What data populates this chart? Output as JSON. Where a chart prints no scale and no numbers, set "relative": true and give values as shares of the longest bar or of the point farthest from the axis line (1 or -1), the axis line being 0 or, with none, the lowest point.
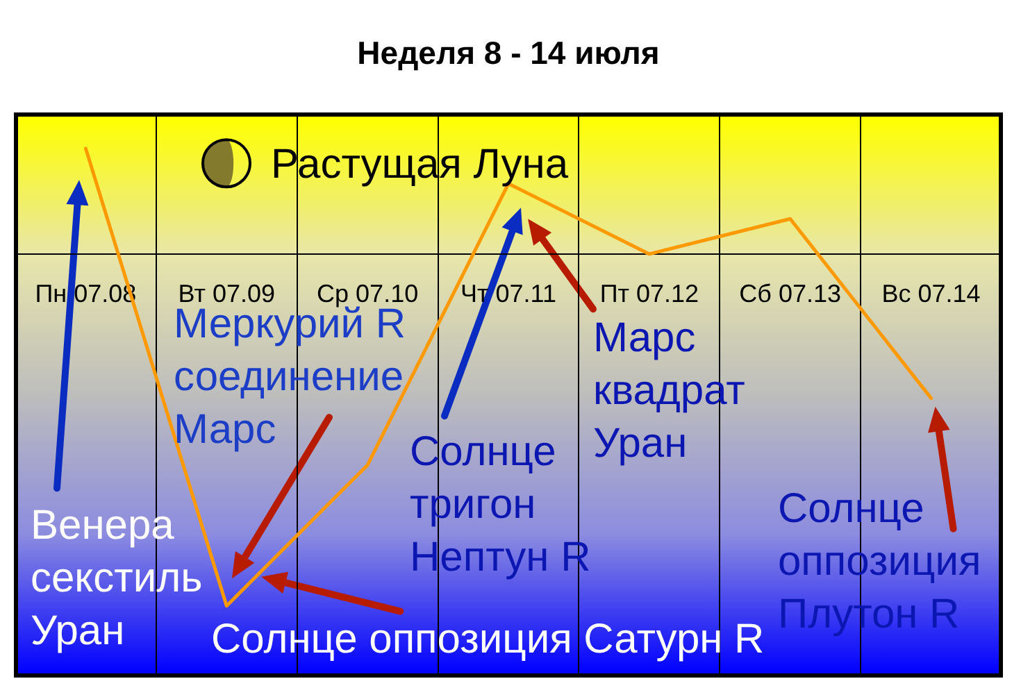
{
  "chart_data": {
    "type": "line",
    "title": "Неделя 8 - 14 июля",
    "categories": [
      "Пн 07.08",
      "Вт 07.09",
      "Ср 07.10",
      "Чт 07.11",
      "Пт 07.12",
      "Сб 07.13",
      "Вс 07.14"
    ],
    "values": [
      0.3,
      -1,
      -0.6,
      0.2,
      0,
      0.1,
      -0.41
    ],
    "color": "#ff9900",
    "relative": true,
    "grid": "x",
    "legend": false,
    "marker": "none",
    "annotations": [
      "Растущая Луна",
      "Венера секстиль Уран",
      "Меркурий R соединение Марс",
      {
        "text": "Солнце оппозиция Сатурн R",
        "x": "Вт 07.09",
        "y": -1
      },
      "Солнце тригон Нептун R",
      "Марс квадрат Уран",
      {
        "text": "Солнце оппозиция Плутон R",
        "x": "Вс 07.14",
        "y": -0.41
      }
    ]
  }
}
